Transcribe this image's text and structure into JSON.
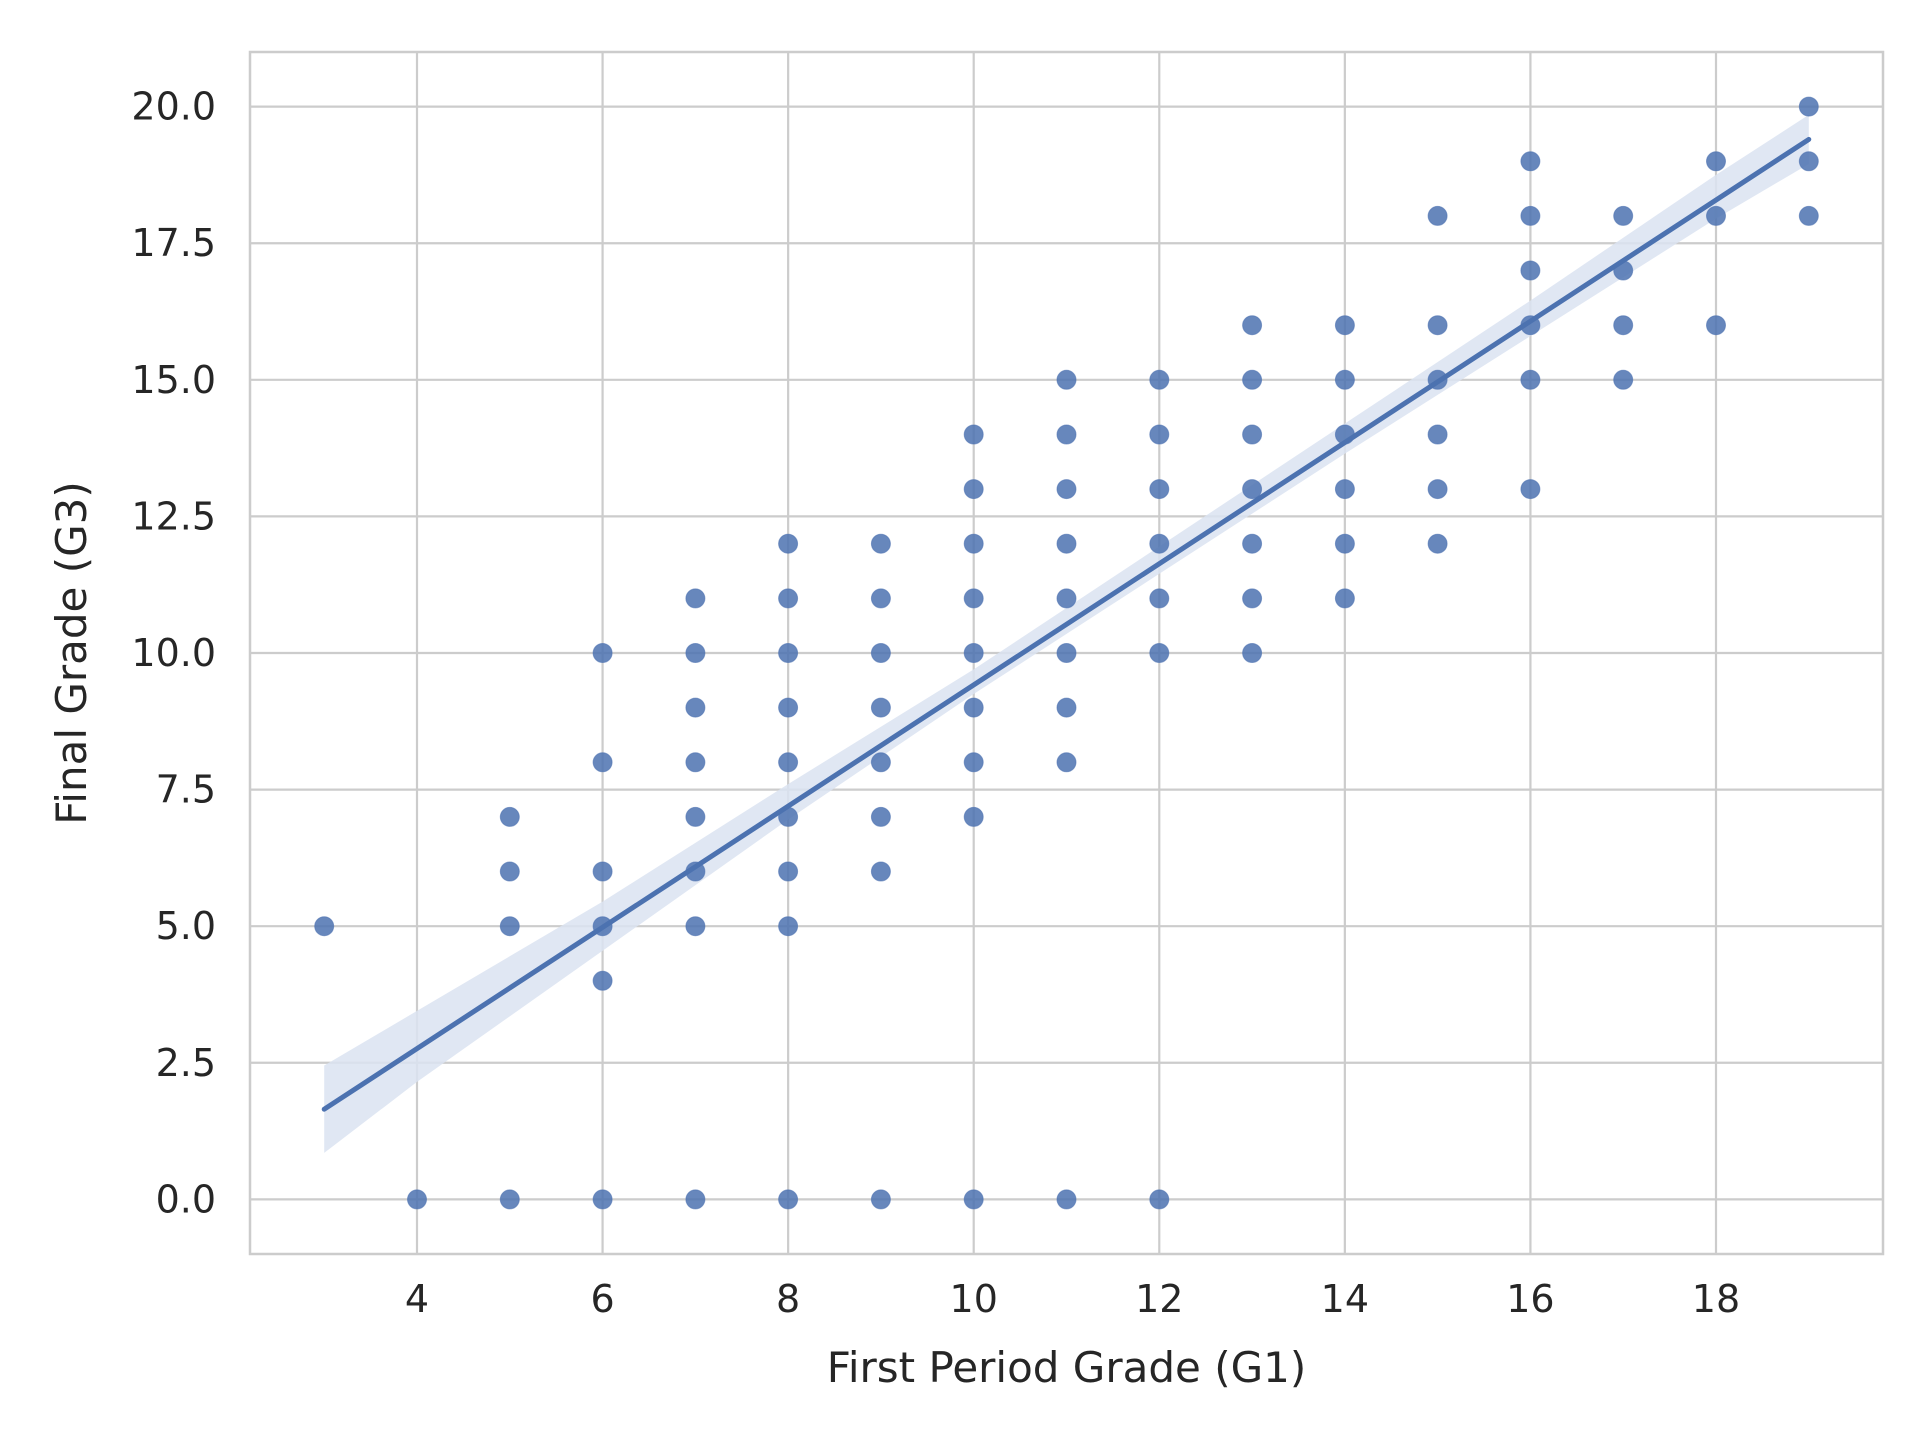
{
  "chart_data": {
    "type": "scatter",
    "xlabel": "First Period Grade (G1)",
    "ylabel": "Final Grade (G3)",
    "xlim": [
      2.2,
      19.8
    ],
    "ylim": [
      -1.0,
      21.0
    ],
    "x_ticks": [
      4,
      6,
      8,
      10,
      12,
      14,
      16,
      18
    ],
    "y_ticks": [
      0.0,
      2.5,
      5.0,
      7.5,
      10.0,
      12.5,
      15.0,
      17.5,
      20.0
    ],
    "x_tick_labels": [
      "4",
      "6",
      "8",
      "10",
      "12",
      "14",
      "16",
      "18"
    ],
    "y_tick_labels": [
      "0.0",
      "2.5",
      "5.0",
      "7.5",
      "10.0",
      "12.5",
      "15.0",
      "17.5",
      "20.0"
    ],
    "grid": true,
    "point_color": "#4c72b0",
    "ci_color": "#dbe3f1",
    "grid_color": "#cccccc",
    "points": [
      [
        3,
        5
      ],
      [
        4,
        0
      ],
      [
        5,
        0
      ],
      [
        5,
        5
      ],
      [
        5,
        6
      ],
      [
        5,
        7
      ],
      [
        6,
        0
      ],
      [
        6,
        4
      ],
      [
        6,
        5
      ],
      [
        6,
        6
      ],
      [
        6,
        8
      ],
      [
        6,
        10
      ],
      [
        7,
        0
      ],
      [
        7,
        5
      ],
      [
        7,
        6
      ],
      [
        7,
        7
      ],
      [
        7,
        8
      ],
      [
        7,
        9
      ],
      [
        7,
        10
      ],
      [
        7,
        11
      ],
      [
        8,
        0
      ],
      [
        8,
        5
      ],
      [
        8,
        6
      ],
      [
        8,
        7
      ],
      [
        8,
        8
      ],
      [
        8,
        9
      ],
      [
        8,
        10
      ],
      [
        8,
        11
      ],
      [
        8,
        12
      ],
      [
        9,
        0
      ],
      [
        9,
        6
      ],
      [
        9,
        7
      ],
      [
        9,
        8
      ],
      [
        9,
        9
      ],
      [
        9,
        10
      ],
      [
        9,
        11
      ],
      [
        9,
        12
      ],
      [
        10,
        0
      ],
      [
        10,
        7
      ],
      [
        10,
        8
      ],
      [
        10,
        9
      ],
      [
        10,
        10
      ],
      [
        10,
        11
      ],
      [
        10,
        12
      ],
      [
        10,
        13
      ],
      [
        10,
        14
      ],
      [
        11,
        0
      ],
      [
        11,
        8
      ],
      [
        11,
        9
      ],
      [
        11,
        10
      ],
      [
        11,
        11
      ],
      [
        11,
        12
      ],
      [
        11,
        13
      ],
      [
        11,
        14
      ],
      [
        11,
        15
      ],
      [
        12,
        0
      ],
      [
        12,
        10
      ],
      [
        12,
        11
      ],
      [
        12,
        12
      ],
      [
        12,
        13
      ],
      [
        12,
        14
      ],
      [
        12,
        15
      ],
      [
        13,
        10
      ],
      [
        13,
        11
      ],
      [
        13,
        12
      ],
      [
        13,
        13
      ],
      [
        13,
        14
      ],
      [
        13,
        15
      ],
      [
        13,
        16
      ],
      [
        14,
        11
      ],
      [
        14,
        12
      ],
      [
        14,
        13
      ],
      [
        14,
        14
      ],
      [
        14,
        15
      ],
      [
        14,
        16
      ],
      [
        15,
        12
      ],
      [
        15,
        13
      ],
      [
        15,
        14
      ],
      [
        15,
        15
      ],
      [
        15,
        16
      ],
      [
        15,
        18
      ],
      [
        16,
        13
      ],
      [
        16,
        15
      ],
      [
        16,
        16
      ],
      [
        16,
        17
      ],
      [
        16,
        18
      ],
      [
        16,
        19
      ],
      [
        17,
        15
      ],
      [
        17,
        16
      ],
      [
        17,
        17
      ],
      [
        17,
        18
      ],
      [
        18,
        16
      ],
      [
        18,
        18
      ],
      [
        18,
        19
      ],
      [
        19,
        18
      ],
      [
        19,
        19
      ],
      [
        19,
        20
      ]
    ],
    "regression": {
      "x": [
        3,
        19
      ],
      "y": [
        1.65,
        19.4
      ]
    },
    "confidence_band": {
      "x": [
        3,
        4,
        6,
        8,
        10,
        12,
        14,
        16,
        18,
        19
      ],
      "lower": [
        0.85,
        2.15,
        4.55,
        6.95,
        9.25,
        11.45,
        13.65,
        15.8,
        17.95,
        18.95
      ],
      "upper": [
        2.45,
        3.45,
        5.45,
        7.6,
        9.7,
        11.95,
        14.2,
        16.45,
        18.75,
        19.85
      ]
    }
  }
}
